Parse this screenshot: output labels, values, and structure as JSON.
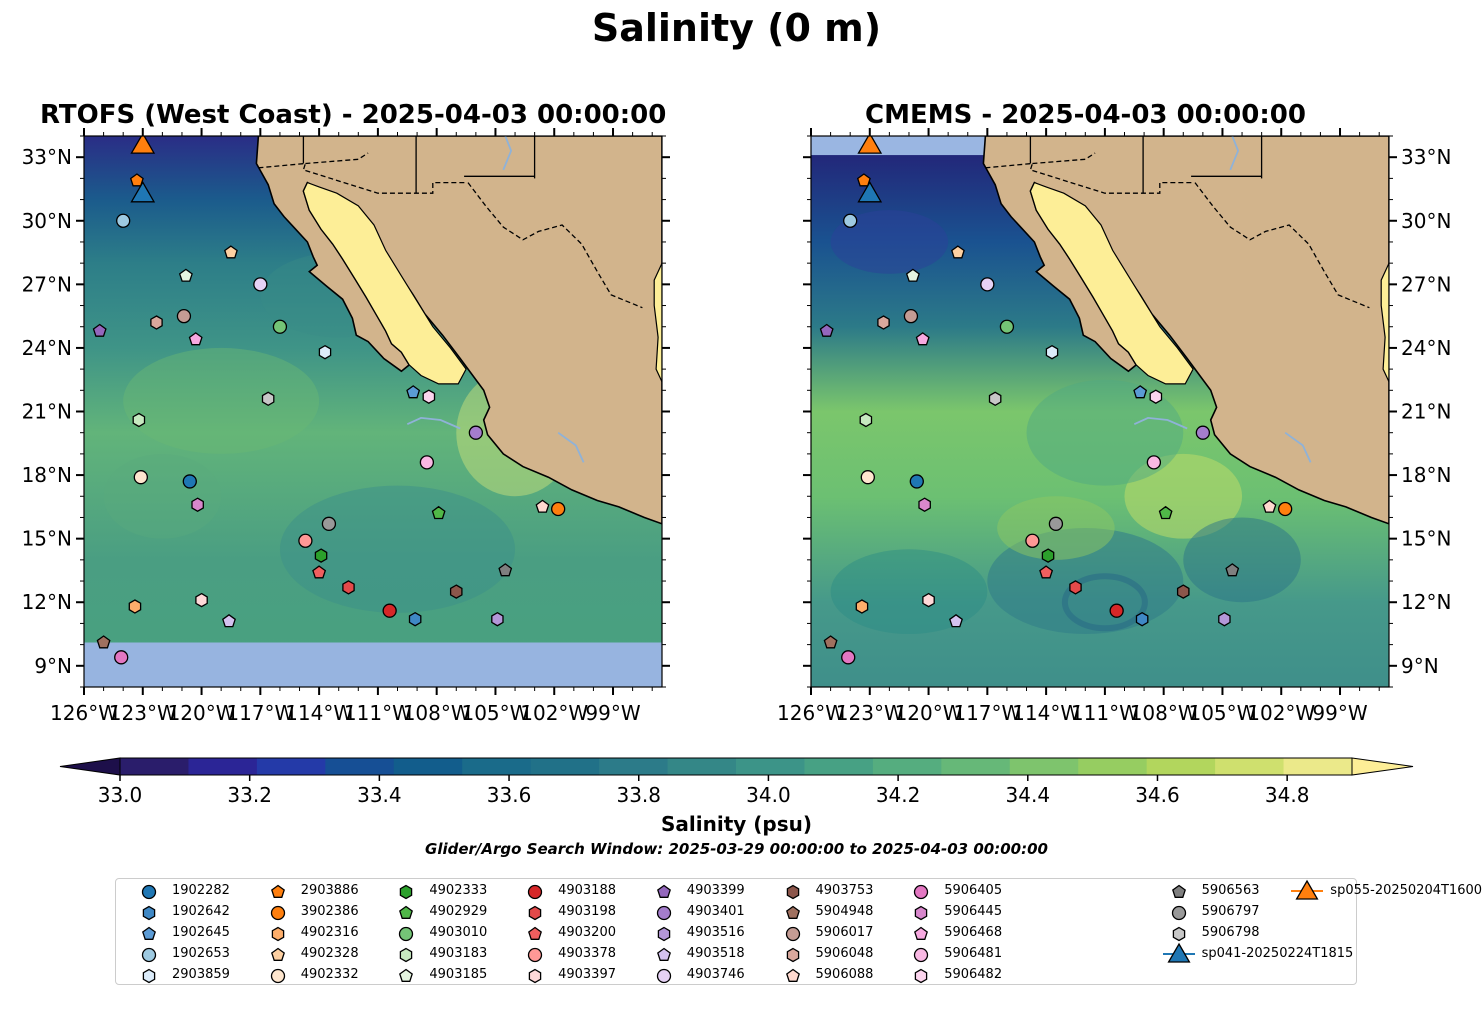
{
  "suptitle": "Salinity (0 m)",
  "panels": [
    {
      "title": "RTOFS (West Coast) - 2025-04-03 00:00:00"
    },
    {
      "title": "CMEMS - 2025-04-03 00:00:00"
    }
  ],
  "chart_data": {
    "type": "heatmap",
    "variable": "Salinity (psu)",
    "lon_range": [
      -126,
      -96.5
    ],
    "lat_range": [
      8,
      34
    ],
    "x_ticks": [
      "126°W",
      "123°W",
      "120°W",
      "117°W",
      "114°W",
      "111°W",
      "108°W",
      "105°W",
      "102°W",
      "99°W"
    ],
    "y_ticks": [
      "9°N",
      "12°N",
      "15°N",
      "18°N",
      "21°N",
      "24°N",
      "27°N",
      "30°N",
      "33°N"
    ],
    "colorbar": {
      "label": "Salinity (psu)",
      "range": [
        33.0,
        34.9
      ],
      "ticks": [
        "33.0",
        "33.2",
        "33.4",
        "33.6",
        "33.8",
        "34.0",
        "34.2",
        "34.4",
        "34.6",
        "34.8"
      ],
      "extend": "both",
      "colors": [
        "#2a1d6b",
        "#2b2596",
        "#243aa8",
        "#164f95",
        "#125d8c",
        "#1a6b8a",
        "#217188",
        "#2c7b89",
        "#348787",
        "#3c9488",
        "#47a184",
        "#55ad7f",
        "#66b878",
        "#7ec46d",
        "#96cd61",
        "#b2d65d",
        "#cfe06e",
        "#ebe98a"
      ]
    },
    "ocean_gradient": {
      "panel1": [
        [
          8,
          "#48a27f"
        ],
        [
          14,
          "#4a9e82"
        ],
        [
          20,
          "#62b47a"
        ],
        [
          24,
          "#3f9487"
        ],
        [
          28,
          "#2d7e88"
        ],
        [
          31,
          "#1b5b8c"
        ],
        [
          34,
          "#2a2d86"
        ]
      ],
      "panel2": [
        [
          8,
          "#3f8f8a"
        ],
        [
          12,
          "#46998a"
        ],
        [
          17,
          "#6cc072"
        ],
        [
          21,
          "#7bc66c"
        ],
        [
          25,
          "#2c7a88"
        ],
        [
          29,
          "#1a5290"
        ],
        [
          34,
          "#241e75"
        ]
      ]
    },
    "glider_argo_window": "Glider/Argo Search Window: 2025-03-29 00:00:00 to 2025-04-03 00:00:00",
    "legend_placement": "bottom-center",
    "floats": [
      {
        "id": "1902282",
        "lon": -120.6,
        "lat": 17.7,
        "marker": "circle",
        "color": "#1f77b4"
      },
      {
        "id": "1902642",
        "lon": -109.1,
        "lat": 11.2,
        "marker": "hexagon",
        "color": "#3f88c5"
      },
      {
        "id": "1902645",
        "lon": -109.2,
        "lat": 21.9,
        "marker": "pentagon",
        "color": "#5b9bd5"
      },
      {
        "id": "1902653",
        "lon": -124.0,
        "lat": 30.0,
        "marker": "circle",
        "color": "#9ecae1"
      },
      {
        "id": "2903859",
        "lon": -113.7,
        "lat": 23.8,
        "marker": "hexagon",
        "color": "#dcecfa"
      },
      {
        "id": "2903886",
        "lon": -123.3,
        "lat": 31.9,
        "marker": "pentagon",
        "color": "#ff7f0e"
      },
      {
        "id": "3902386",
        "lon": -101.8,
        "lat": 16.4,
        "marker": "circle",
        "color": "#ff7f0e"
      },
      {
        "id": "4902316",
        "lon": -123.4,
        "lat": 11.8,
        "marker": "hexagon",
        "color": "#fdae6b"
      },
      {
        "id": "4902328",
        "lon": -118.5,
        "lat": 28.5,
        "marker": "pentagon",
        "color": "#fdd0a2"
      },
      {
        "id": "4902332",
        "lon": -123.1,
        "lat": 17.9,
        "marker": "circle",
        "color": "#fee6ce"
      },
      {
        "id": "4902333",
        "lon": -113.9,
        "lat": 14.2,
        "marker": "hexagon",
        "color": "#2ca02c"
      },
      {
        "id": "4902929",
        "lon": -107.9,
        "lat": 16.2,
        "marker": "pentagon",
        "color": "#50b848"
      },
      {
        "id": "4903010",
        "lon": -116.0,
        "lat": 25.0,
        "marker": "circle",
        "color": "#74c476"
      },
      {
        "id": "4903183",
        "lon": -123.2,
        "lat": 20.6,
        "marker": "hexagon",
        "color": "#c7e9c0"
      },
      {
        "id": "4903185",
        "lon": -120.8,
        "lat": 27.4,
        "marker": "pentagon",
        "color": "#e5f5e0"
      },
      {
        "id": "4903188",
        "lon": -110.4,
        "lat": 11.6,
        "marker": "circle",
        "color": "#d62728"
      },
      {
        "id": "4903198",
        "lon": -112.5,
        "lat": 12.7,
        "marker": "hexagon",
        "color": "#e34a4a"
      },
      {
        "id": "4903200",
        "lon": -114.0,
        "lat": 13.4,
        "marker": "pentagon",
        "color": "#f05f5f"
      },
      {
        "id": "4903378",
        "lon": -114.7,
        "lat": 14.9,
        "marker": "circle",
        "color": "#ff9896"
      },
      {
        "id": "4903397",
        "lon": -120.0,
        "lat": 12.1,
        "marker": "hexagon",
        "color": "#ffd8d8"
      },
      {
        "id": "4903399",
        "lon": -125.2,
        "lat": 24.8,
        "marker": "pentagon",
        "color": "#9467bd"
      },
      {
        "id": "4903401",
        "lon": -106.0,
        "lat": 20.0,
        "marker": "circle",
        "color": "#a47dcc"
      },
      {
        "id": "4903516",
        "lon": -104.9,
        "lat": 11.2,
        "marker": "hexagon",
        "color": "#b497d8"
      },
      {
        "id": "4903518",
        "lon": -118.6,
        "lat": 11.1,
        "marker": "pentagon",
        "color": "#d4c2ef"
      },
      {
        "id": "4903746",
        "lon": -117.0,
        "lat": 27.0,
        "marker": "circle",
        "color": "#e6d2f5"
      },
      {
        "id": "4903753",
        "lon": -107.0,
        "lat": 12.5,
        "marker": "hexagon",
        "color": "#8c564b"
      },
      {
        "id": "5904948",
        "lon": -125.0,
        "lat": 10.1,
        "marker": "pentagon",
        "color": "#a0705f"
      },
      {
        "id": "5906017",
        "lon": -120.9,
        "lat": 25.5,
        "marker": "circle",
        "color": "#c49c94"
      },
      {
        "id": "5906048",
        "lon": -122.3,
        "lat": 25.2,
        "marker": "hexagon",
        "color": "#d9a89d"
      },
      {
        "id": "5906088",
        "lon": -102.6,
        "lat": 16.5,
        "marker": "pentagon",
        "color": "#ffd9cf"
      },
      {
        "id": "5906405",
        "lon": -124.1,
        "lat": 9.4,
        "marker": "circle",
        "color": "#e377c2"
      },
      {
        "id": "5906445",
        "lon": -120.2,
        "lat": 16.6,
        "marker": "hexagon",
        "color": "#d887cc"
      },
      {
        "id": "5906468",
        "lon": -120.3,
        "lat": 24.4,
        "marker": "pentagon",
        "color": "#f7a9e0"
      },
      {
        "id": "5906481",
        "lon": -108.5,
        "lat": 18.6,
        "marker": "circle",
        "color": "#f9b8e3"
      },
      {
        "id": "5906482",
        "lon": -108.4,
        "lat": 21.7,
        "marker": "hexagon",
        "color": "#fcd5ee"
      },
      {
        "id": "5906563",
        "lon": -104.5,
        "lat": 13.5,
        "marker": "pentagon",
        "color": "#7f7f7f"
      },
      {
        "id": "5906797",
        "lon": -113.5,
        "lat": 15.7,
        "marker": "circle",
        "color": "#999999"
      },
      {
        "id": "5906798",
        "lon": -116.6,
        "lat": 21.6,
        "marker": "hexagon",
        "color": "#c7c7c7"
      }
    ],
    "gliders": [
      {
        "id": "sp041-20250224T1815",
        "lon": -123.0,
        "lat": 31.2,
        "marker": "triangle",
        "color": "#1f77b4"
      },
      {
        "id": "sp055-20250204T1600",
        "lon": -123.0,
        "lat": 33.5,
        "marker": "triangle",
        "color": "#ff7f0e"
      }
    ]
  }
}
